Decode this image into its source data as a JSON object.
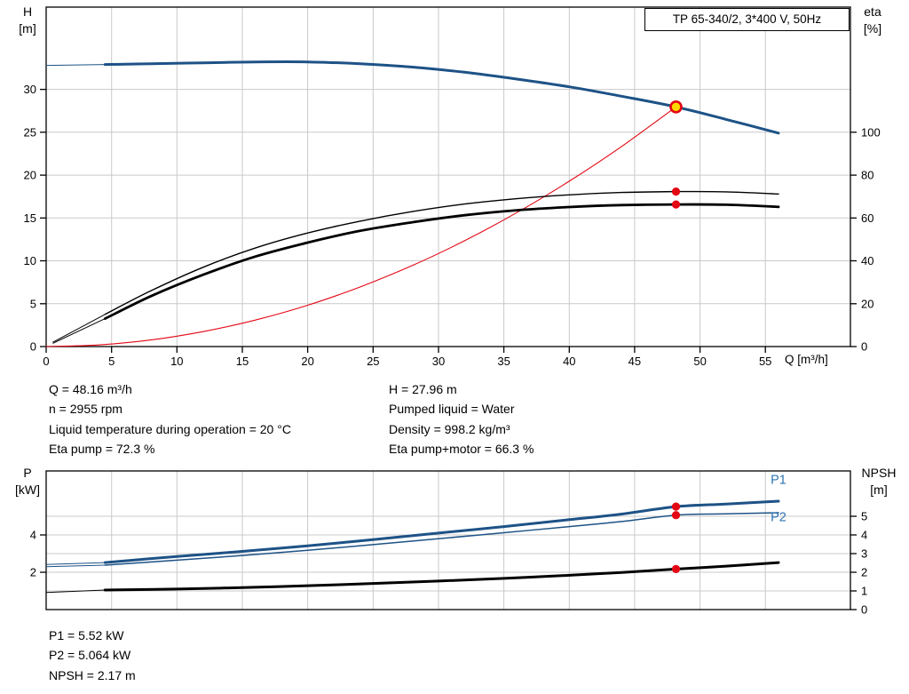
{
  "colors": {
    "blue": "#1d5286",
    "blue_light": "#2e74b5",
    "black": "#000000",
    "red": "#e30613",
    "duty_fill": "#ffd800",
    "grid": "#c9c9c9",
    "frame": "#000000"
  },
  "info_block": {
    "left": [
      "Q = 48.16 m³/h",
      "n = 2955 rpm",
      "Liquid temperature during operation = 20 °C",
      "Eta pump = 72.3 %"
    ],
    "right": [
      "H = 27.96 m",
      "Pumped liquid = Water",
      "Density = 998.2 kg/m³",
      "Eta pump+motor = 66.3 %"
    ]
  },
  "footer_block": [
    "P1 = 5.52 kW",
    "P2 = 5.064 kW",
    "NPSH = 2.17 m"
  ],
  "chart_data": [
    {
      "type": "line",
      "name": "qh-eta-chart",
      "title": "TP 65-340/2, 3*400 V, 50Hz",
      "x_axis": {
        "label": "Q [m³/h]",
        "ticks": [
          0,
          5,
          10,
          15,
          20,
          25,
          30,
          35,
          40,
          45,
          50,
          55
        ],
        "lim": [
          0,
          61.5
        ],
        "show_tick_labels": true
      },
      "left_axis": {
        "label_lines": [
          "H",
          "[m]"
        ],
        "ticks": [
          0,
          5,
          10,
          15,
          20,
          25,
          30
        ],
        "lim": [
          0,
          39.6
        ],
        "grid": true
      },
      "right_axis": {
        "label_lines": [
          "eta",
          "[%]"
        ],
        "ticks": [
          0,
          20,
          40,
          60,
          80,
          100
        ],
        "lim": [
          0,
          158.4
        ],
        "grid": false
      },
      "series": [
        {
          "name": "head-curve",
          "axis": "left",
          "color": "blue",
          "width": 3,
          "lead": [
            [
              0,
              32.8
            ]
          ],
          "points": [
            [
              4.5,
              32.9
            ],
            [
              8,
              33.0
            ],
            [
              12,
              33.1
            ],
            [
              16,
              33.2
            ],
            [
              20,
              33.2
            ],
            [
              24,
              33.0
            ],
            [
              28,
              32.6
            ],
            [
              32,
              32.0
            ],
            [
              36,
              31.2
            ],
            [
              40,
              30.3
            ],
            [
              44,
              29.2
            ],
            [
              48.16,
              27.96
            ],
            [
              52,
              26.5
            ],
            [
              56,
              24.9
            ]
          ]
        },
        {
          "name": "system-curve",
          "axis": "left",
          "color": "red",
          "width": 1.1,
          "points": [
            [
              0,
              0
            ],
            [
              4,
              0.19
            ],
            [
              8,
              0.77
            ],
            [
              12,
              1.74
            ],
            [
              16,
              3.09
            ],
            [
              20,
              4.82
            ],
            [
              24,
              6.95
            ],
            [
              28,
              9.45
            ],
            [
              32,
              12.35
            ],
            [
              36,
              15.63
            ],
            [
              40,
              19.29
            ],
            [
              44,
              23.34
            ],
            [
              48.16,
              27.96
            ]
          ]
        },
        {
          "name": "eta-pump-curve",
          "axis": "right",
          "color": "black",
          "width": 1.4,
          "lead": [
            [
              0.5,
              2
            ]
          ],
          "points": [
            [
              4.5,
              15
            ],
            [
              8,
              26
            ],
            [
              12,
              37
            ],
            [
              16,
              46
            ],
            [
              20,
              53
            ],
            [
              24,
              58.5
            ],
            [
              28,
              63
            ],
            [
              32,
              66.5
            ],
            [
              36,
              69
            ],
            [
              40,
              70.8
            ],
            [
              44,
              71.9
            ],
            [
              48.16,
              72.3
            ],
            [
              52,
              72.2
            ],
            [
              56,
              71.2
            ]
          ]
        },
        {
          "name": "eta-pump-motor-curve",
          "axis": "right",
          "color": "black",
          "width": 2.8,
          "lead": [
            [
              0.5,
              1.5
            ]
          ],
          "points": [
            [
              4.5,
              13
            ],
            [
              8,
              23.5
            ],
            [
              12,
              33.5
            ],
            [
              16,
              42
            ],
            [
              20,
              48.5
            ],
            [
              24,
              54
            ],
            [
              28,
              58
            ],
            [
              32,
              61.3
            ],
            [
              36,
              63.6
            ],
            [
              40,
              65.1
            ],
            [
              44,
              66.0
            ],
            [
              48.16,
              66.3
            ],
            [
              52,
              66.2
            ],
            [
              56,
              65.2
            ]
          ]
        }
      ],
      "markers": [
        {
          "name": "duty-point",
          "axis": "left",
          "x": 48.16,
          "y": 27.96,
          "style": "duty"
        },
        {
          "name": "eta-pump-point",
          "axis": "right",
          "x": 48.16,
          "y": 72.3,
          "style": "dot"
        },
        {
          "name": "eta-pump-motor-point",
          "axis": "right",
          "x": 48.16,
          "y": 66.3,
          "style": "dot"
        }
      ]
    },
    {
      "type": "line",
      "name": "power-npsh-chart",
      "title": "",
      "x_axis": {
        "label": "",
        "ticks": [
          0,
          5,
          10,
          15,
          20,
          25,
          30,
          35,
          40,
          45,
          50,
          55
        ],
        "lim": [
          0,
          61.5
        ],
        "show_tick_labels": false
      },
      "left_axis": {
        "label_lines": [
          "P",
          "[kW]"
        ],
        "ticks": [
          2,
          4
        ],
        "lim": [
          0,
          7.43
        ],
        "grid": false
      },
      "right_axis": {
        "label_lines": [
          "NPSH",
          "[m]"
        ],
        "ticks": [
          0,
          1,
          2,
          3,
          4,
          5
        ],
        "lim": [
          0,
          7.43
        ],
        "grid": true
      },
      "series": [
        {
          "name": "p1-curve",
          "axis": "left",
          "color": "blue",
          "width": 3,
          "label": "P1",
          "label_color": "blue_light",
          "label_at": [
            55.4,
            6.75
          ],
          "lead": [
            [
              0,
              2.42
            ]
          ],
          "points": [
            [
              4.5,
              2.52
            ],
            [
              10,
              2.85
            ],
            [
              15,
              3.12
            ],
            [
              20,
              3.42
            ],
            [
              25,
              3.75
            ],
            [
              30,
              4.1
            ],
            [
              35,
              4.45
            ],
            [
              40,
              4.82
            ],
            [
              44,
              5.12
            ],
            [
              48.16,
              5.52
            ],
            [
              52,
              5.66
            ],
            [
              56,
              5.81
            ]
          ]
        },
        {
          "name": "p2-curve",
          "axis": "left",
          "color": "blue",
          "width": 1.5,
          "label": "P2",
          "label_color": "blue_light",
          "label_at": [
            55.4,
            4.75
          ],
          "lead": [
            [
              0,
              2.3
            ]
          ],
          "points": [
            [
              4.5,
              2.38
            ],
            [
              10,
              2.65
            ],
            [
              15,
              2.9
            ],
            [
              20,
              3.18
            ],
            [
              25,
              3.48
            ],
            [
              30,
              3.8
            ],
            [
              35,
              4.12
            ],
            [
              40,
              4.45
            ],
            [
              44,
              4.72
            ],
            [
              48.16,
              5.064
            ],
            [
              52,
              5.13
            ],
            [
              56,
              5.19
            ]
          ]
        },
        {
          "name": "npsh-curve",
          "axis": "right",
          "color": "black",
          "width": 3,
          "lead": [
            [
              0,
              0.92
            ]
          ],
          "points": [
            [
              4.5,
              1.05
            ],
            [
              10,
              1.1
            ],
            [
              15,
              1.18
            ],
            [
              20,
              1.28
            ],
            [
              25,
              1.4
            ],
            [
              30,
              1.53
            ],
            [
              35,
              1.67
            ],
            [
              40,
              1.84
            ],
            [
              44,
              1.99
            ],
            [
              48.16,
              2.17
            ],
            [
              52,
              2.33
            ],
            [
              56,
              2.52
            ]
          ]
        }
      ],
      "markers": [
        {
          "name": "p1-point",
          "axis": "left",
          "x": 48.16,
          "y": 5.52,
          "style": "dot"
        },
        {
          "name": "p2-point",
          "axis": "left",
          "x": 48.16,
          "y": 5.064,
          "style": "dot"
        },
        {
          "name": "npsh-point",
          "axis": "right",
          "x": 48.16,
          "y": 2.17,
          "style": "dot"
        }
      ]
    }
  ]
}
